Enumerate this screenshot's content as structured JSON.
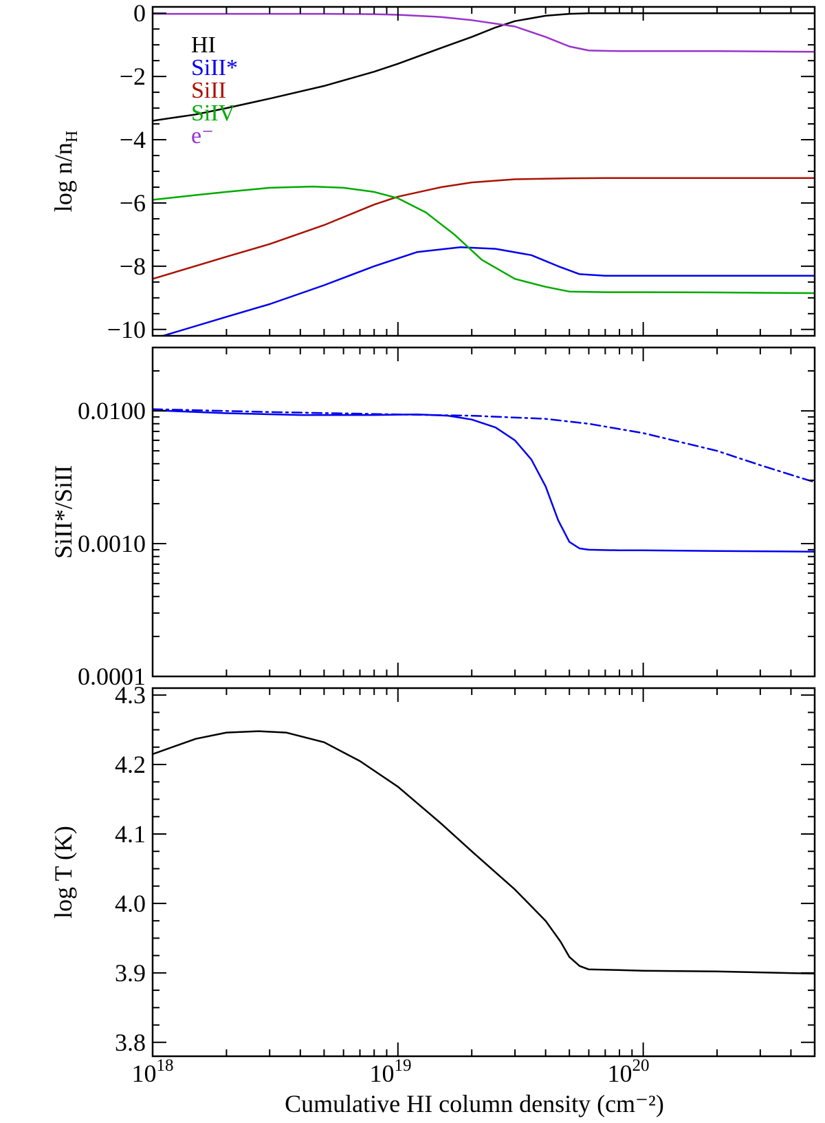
{
  "xlabel": "Cumulative HI column density (cm⁻²)",
  "x_ticks": [
    {
      "value": 1e+18,
      "base": "10",
      "exp": "18"
    },
    {
      "value": 1e+19,
      "base": "10",
      "exp": "19"
    },
    {
      "value": 1e+20,
      "base": "10",
      "exp": "20"
    }
  ],
  "chart_data": [
    {
      "type": "line",
      "ylabel": "log n/nH",
      "ylabel_base": "log n/n",
      "ylabel_sub": "H",
      "xscale": "log",
      "xlim": [
        1e+18,
        5e+20
      ],
      "ylim": [
        -10.2,
        0.2
      ],
      "yticks": [
        0,
        -2,
        -4,
        -6,
        -8,
        -10
      ],
      "ytick_labels": [
        "0",
        "−2",
        "−4",
        "−6",
        "−8",
        "−10"
      ],
      "legend_position": "top-left",
      "series": [
        {
          "name": "HI",
          "color": "#000000",
          "dash": "solid",
          "x": [
            1e+18,
            1.5e+18,
            2e+18,
            3e+18,
            5e+18,
            8e+18,
            1e+19,
            1.5e+19,
            2e+19,
            2.5e+19,
            3e+19,
            4e+19,
            5e+19,
            6e+19,
            1e+20,
            2e+20,
            5e+20
          ],
          "y": [
            -3.4,
            -3.2,
            -3.0,
            -2.7,
            -2.3,
            -1.85,
            -1.6,
            -1.1,
            -0.75,
            -0.45,
            -0.25,
            -0.08,
            -0.02,
            0,
            0,
            0,
            0
          ]
        },
        {
          "name": "SiII*",
          "color": "#0000ee",
          "dash": "solid",
          "x": [
            1e+18,
            2e+18,
            3e+18,
            5e+18,
            8e+18,
            1.2e+19,
            1.8e+19,
            2.5e+19,
            3.5e+19,
            4.5e+19,
            5.5e+19,
            7e+19,
            1e+20,
            2e+20,
            5e+20
          ],
          "y": [
            -10.3,
            -9.6,
            -9.2,
            -8.6,
            -8.0,
            -7.55,
            -7.4,
            -7.45,
            -7.65,
            -8.0,
            -8.25,
            -8.3,
            -8.3,
            -8.3,
            -8.3
          ]
        },
        {
          "name": "SiII",
          "color": "#aa1100",
          "dash": "solid",
          "x": [
            1e+18,
            2e+18,
            3e+18,
            5e+18,
            8e+18,
            1e+19,
            1.5e+19,
            2e+19,
            3e+19,
            5e+19,
            7e+19,
            1e+20,
            2e+20,
            5e+20
          ],
          "y": [
            -8.4,
            -7.7,
            -7.3,
            -6.7,
            -6.05,
            -5.8,
            -5.5,
            -5.35,
            -5.25,
            -5.22,
            -5.21,
            -5.21,
            -5.21,
            -5.21
          ]
        },
        {
          "name": "SiIV",
          "color": "#00aa00",
          "dash": "solid",
          "x": [
            1e+18,
            1.5e+18,
            2e+18,
            3e+18,
            4.5e+18,
            6e+18,
            8e+18,
            1e+19,
            1.3e+19,
            1.7e+19,
            2.2e+19,
            3e+19,
            4e+19,
            5e+19,
            7e+19,
            1e+20,
            2e+20,
            5e+20
          ],
          "y": [
            -5.9,
            -5.75,
            -5.65,
            -5.52,
            -5.48,
            -5.52,
            -5.65,
            -5.85,
            -6.3,
            -7.0,
            -7.8,
            -8.4,
            -8.65,
            -8.8,
            -8.82,
            -8.82,
            -8.83,
            -8.85
          ]
        },
        {
          "name": "e⁻",
          "color": "#9933cc",
          "dash": "solid",
          "x": [
            1e+18,
            5e+18,
            8e+18,
            1e+19,
            1.5e+19,
            2e+19,
            3e+19,
            4e+19,
            5e+19,
            6e+19,
            8e+19,
            1e+20,
            2e+20,
            5e+20
          ],
          "y": [
            -0.02,
            -0.02,
            -0.03,
            -0.05,
            -0.12,
            -0.22,
            -0.42,
            -0.75,
            -1.05,
            -1.18,
            -1.2,
            -1.2,
            -1.2,
            -1.22
          ]
        }
      ]
    },
    {
      "type": "line",
      "ylabel": "SiII*/SiII",
      "xscale": "log",
      "yscale": "log",
      "xlim": [
        1e+18,
        5e+20
      ],
      "ylim": [
        0.0001,
        0.03
      ],
      "yticks": [
        0.01,
        0.001,
        0.0001
      ],
      "ytick_labels": [
        "0.0100",
        "0.0010",
        "0.0001"
      ],
      "series": [
        {
          "color": "#0000ee",
          "dash": "solid",
          "x": [
            1e+18,
            2e+18,
            4e+18,
            8e+18,
            1.2e+19,
            1.6e+19,
            2e+19,
            2.5e+19,
            3e+19,
            3.5e+19,
            4e+19,
            4.5e+19,
            5e+19,
            5.5e+19,
            6e+19,
            8e+19,
            1e+20,
            2e+20,
            5e+20
          ],
          "y": [
            0.0101,
            0.0096,
            0.0093,
            0.0093,
            0.0094,
            0.0092,
            0.0086,
            0.0075,
            0.006,
            0.0043,
            0.0027,
            0.0015,
            0.00103,
            0.00092,
            0.0009,
            0.00089,
            0.00089,
            0.00088,
            0.00087
          ]
        },
        {
          "color": "#0000ee",
          "dash": "dashdot",
          "x": [
            1e+18,
            3e+18,
            1e+19,
            2e+19,
            4e+19,
            6e+19,
            1e+20,
            2e+20,
            3e+20,
            5e+20
          ],
          "y": [
            0.0103,
            0.0098,
            0.0094,
            0.0092,
            0.0087,
            0.008,
            0.0068,
            0.005,
            0.0039,
            0.0029
          ]
        }
      ]
    },
    {
      "type": "line",
      "ylabel": "log T (K)",
      "xscale": "log",
      "xlim": [
        1e+18,
        5e+20
      ],
      "ylim": [
        3.78,
        4.31
      ],
      "yticks": [
        4.3,
        4.2,
        4.1,
        4.0,
        3.9,
        3.8
      ],
      "ytick_labels": [
        "4.3",
        "4.2",
        "4.1",
        "4.0",
        "3.9",
        "3.8"
      ],
      "series": [
        {
          "color": "#000000",
          "dash": "solid",
          "x": [
            1e+18,
            1.5e+18,
            2e+18,
            2.7e+18,
            3.5e+18,
            5e+18,
            7e+18,
            1e+19,
            1.5e+19,
            2e+19,
            3e+19,
            4e+19,
            4.6e+19,
            5e+19,
            5.5e+19,
            6e+19,
            8e+19,
            1e+20,
            2e+20,
            5e+20
          ],
          "y": [
            4.215,
            4.237,
            4.246,
            4.248,
            4.246,
            4.232,
            4.205,
            4.168,
            4.115,
            4.075,
            4.02,
            3.975,
            3.945,
            3.923,
            3.91,
            3.905,
            3.904,
            3.903,
            3.902,
            3.899
          ]
        }
      ]
    }
  ]
}
